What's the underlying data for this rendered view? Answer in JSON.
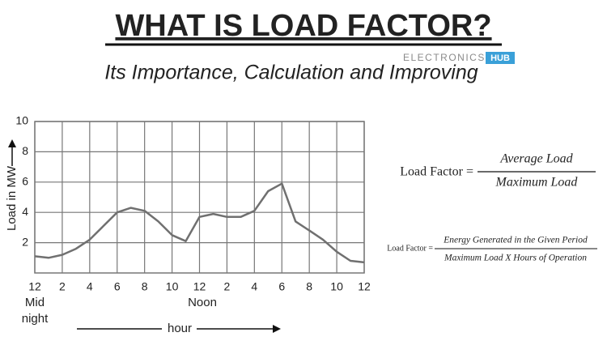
{
  "chart_data": {
    "type": "line",
    "title": "WHAT IS LOAD FACTOR?",
    "subtitle": "Its Importance, Calculation and Improving",
    "logo": [
      "ELECTRONICS",
      "HUB"
    ],
    "y_label": "Load in MW",
    "x_label": "hour",
    "x_annotations": [
      "Mid",
      "night",
      "Noon"
    ],
    "x": [
      0,
      1,
      2,
      3,
      4,
      5,
      6,
      7,
      8,
      9,
      10,
      11,
      12,
      13,
      14,
      15,
      16,
      17,
      18,
      19,
      20,
      21,
      22,
      23,
      24
    ],
    "values": [
      1.1,
      1.0,
      1.2,
      1.6,
      2.2,
      3.1,
      4.0,
      4.3,
      4.1,
      3.4,
      2.5,
      2.1,
      3.7,
      3.9,
      3.7,
      3.7,
      4.1,
      5.4,
      5.9,
      3.4,
      2.8,
      2.2,
      1.4,
      0.8,
      0.7
    ],
    "color": "#707070",
    "xlim": [
      0,
      24
    ],
    "xticks": [
      {
        "value": 0,
        "label": "12"
      },
      2,
      4,
      6,
      8,
      10,
      12,
      {
        "value": 14,
        "label": "2"
      },
      {
        "value": 16,
        "label": "4"
      },
      {
        "value": 18,
        "label": "6"
      },
      {
        "value": 20,
        "label": "8"
      },
      {
        "value": 22,
        "label": "10"
      },
      {
        "value": 24,
        "label": "12"
      }
    ],
    "ylim": [
      0,
      10
    ],
    "yticks": [
      2,
      4,
      6,
      8,
      10
    ],
    "grid": true
  },
  "formulas": [
    {
      "lhs": "Load Factor =",
      "numerator": "Average Load",
      "denominator": "Maximum Load"
    },
    {
      "lhs": "Load Factor =",
      "numerator": "Energy Generated in the Given Period",
      "denominator": "Maximum Load X Hours of Operation"
    }
  ]
}
